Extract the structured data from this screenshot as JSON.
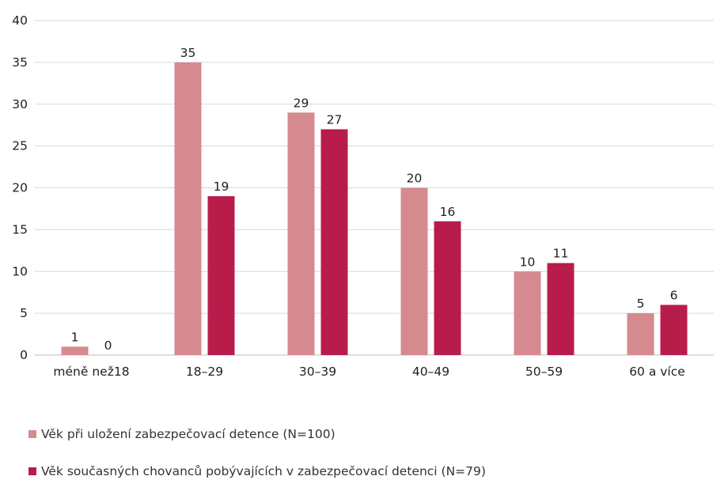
{
  "chart_data": {
    "type": "bar",
    "categories": [
      "méně než18",
      "18–29",
      "30–39",
      "40–49",
      "50–59",
      "60 a více"
    ],
    "series": [
      {
        "name": "Věk při uložení zabezpečovací detence (N=100)",
        "values": [
          1,
          35,
          29,
          20,
          10,
          5
        ],
        "color": "#d58a90"
      },
      {
        "name": "Věk současných chovanců pobývajících v zabezpečovací detenci (N=79)",
        "values": [
          0,
          19,
          27,
          16,
          11,
          6
        ],
        "color": "#b81c4b"
      }
    ],
    "ylim": [
      0,
      40
    ],
    "yticks": [
      "0",
      "5",
      "10",
      "15",
      "20",
      "25",
      "30",
      "35",
      "40"
    ],
    "grid": true,
    "legend_position": "bottom-left",
    "title": "",
    "xlabel": "",
    "ylabel": ""
  }
}
